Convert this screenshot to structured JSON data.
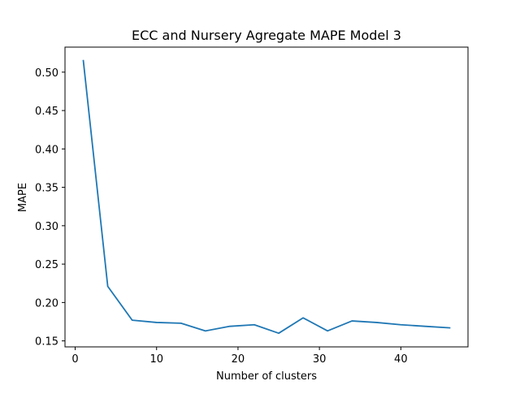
{
  "chart_data": {
    "type": "line",
    "title": "ECC and Nursery Agregate MAPE Model 3",
    "xlabel": "Number of clusters",
    "ylabel": "MAPE",
    "xlim": [
      -1.25,
      48.25
    ],
    "ylim": [
      0.1422,
      0.5326
    ],
    "xticks": [
      0,
      10,
      20,
      30,
      40
    ],
    "yticks": [
      0.15,
      0.2,
      0.25,
      0.3,
      0.35,
      0.4,
      0.45,
      0.5
    ],
    "ytick_labels": [
      "0.15",
      "0.20",
      "0.25",
      "0.30",
      "0.35",
      "0.40",
      "0.45",
      "0.50"
    ],
    "grid": false,
    "series": [
      {
        "color": "#1f77b4",
        "x": [
          1,
          4,
          7,
          10,
          13,
          16,
          19,
          22,
          25,
          28,
          31,
          34,
          37,
          40,
          43,
          46
        ],
        "y": [
          0.515,
          0.221,
          0.177,
          0.174,
          0.173,
          0.163,
          0.169,
          0.171,
          0.16,
          0.18,
          0.163,
          0.176,
          0.174,
          0.171,
          0.169,
          0.167
        ]
      }
    ]
  }
}
